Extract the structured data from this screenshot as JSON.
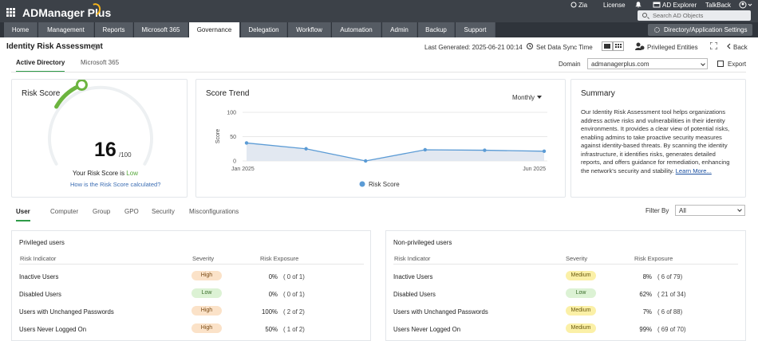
{
  "app": {
    "name": "ADManager Plus"
  },
  "topbar": {
    "user": "Zia",
    "license": "License",
    "ad_explorer": "AD Explorer",
    "talkback": "TalkBack",
    "search_placeholder": "Search AD Objects"
  },
  "nav": {
    "tabs": [
      "Home",
      "Management",
      "Reports",
      "Microsoft 365",
      "Governance",
      "Delegation",
      "Workflow",
      "Automation",
      "Admin",
      "Backup",
      "Support"
    ],
    "active": "Governance",
    "settings_button": "Directory/Application Settings"
  },
  "page": {
    "title": "Identity Risk Assessment",
    "last_generated": "Last Generated: 2025-06-21 00:14",
    "set_sync": "Set Data Sync Time",
    "privileged_entities": "Privileged Entities",
    "back": "Back",
    "tabs": [
      "Active Directory",
      "Microsoft 365"
    ],
    "domain_label": "Domain",
    "domain_value": "admanagerplus.com",
    "export": "Export"
  },
  "risk_score": {
    "title": "Risk Score",
    "value": "16",
    "max": "/100",
    "fraction": 0.16,
    "label_prefix": "Your Risk Score is",
    "level": "Low",
    "link": "How is the Risk Score calculated?"
  },
  "score_trend": {
    "title": "Score Trend",
    "period": "Monthly"
  },
  "chart_data": {
    "type": "line",
    "title": "Score Trend",
    "ylabel": "Score",
    "xlabel": "",
    "ylim": [
      0,
      100
    ],
    "yticks": [
      0,
      50,
      100
    ],
    "x_tick_labels": [
      "Jan 2025",
      "Jun 2025"
    ],
    "x": [
      "Jan 2025",
      "Feb 2025",
      "Mar 2025",
      "Apr 2025",
      "May 2025",
      "Jun 2025"
    ],
    "series": [
      {
        "name": "Risk Score",
        "values": [
          37,
          25,
          0,
          23,
          22,
          20
        ],
        "color": "#5b9bd5"
      }
    ],
    "legend": "bottom",
    "grid": true
  },
  "summary": {
    "title": "Summary",
    "text": "Our Identity Risk Assessment tool helps organizations address active risks and vulnerabilities in their identity environments. It provides a clear view of potential risks, enabling admins to take proactive security measures against identity-based threats. By scanning the identity infrastructure, it identifies risks, generates detailed reports, and offers guidance for remediation, enhancing the network's security and stability.",
    "link": "Learn More..."
  },
  "lower": {
    "tabs": [
      "User",
      "Computer",
      "Group",
      "GPO",
      "Security",
      "Misconfigurations"
    ],
    "filter_label": "Filter By",
    "filter_value": "All"
  },
  "privileged": {
    "title": "Privileged users",
    "headers": [
      "Risk Indicator",
      "Severity",
      "Risk Exposure"
    ],
    "rows": [
      {
        "indicator": "Inactive Users",
        "severity": "High",
        "pct": "0%",
        "count": "( 0 of 1)"
      },
      {
        "indicator": "Disabled Users",
        "severity": "Low",
        "pct": "0%",
        "count": "( 0 of 1)"
      },
      {
        "indicator": "Users with Unchanged Passwords",
        "severity": "High",
        "pct": "100%",
        "count": "( 2 of 2)"
      },
      {
        "indicator": "Users Never Logged On",
        "severity": "High",
        "pct": "50%",
        "count": "( 1 of 2)"
      }
    ]
  },
  "nonprivileged": {
    "title": "Non-privileged users",
    "headers": [
      "Risk Indicator",
      "Severity",
      "Risk Exposure"
    ],
    "rows": [
      {
        "indicator": "Inactive Users",
        "severity": "Medium",
        "pct": "8%",
        "count": "( 6 of 79)"
      },
      {
        "indicator": "Disabled Users",
        "severity": "Low",
        "pct": "62%",
        "count": "( 21 of 34)"
      },
      {
        "indicator": "Users with Unchanged Passwords",
        "severity": "Medium",
        "pct": "7%",
        "count": "( 6 of 88)"
      },
      {
        "indicator": "Users Never Logged On",
        "severity": "Medium",
        "pct": "99%",
        "count": "( 69 of 70)"
      }
    ]
  }
}
